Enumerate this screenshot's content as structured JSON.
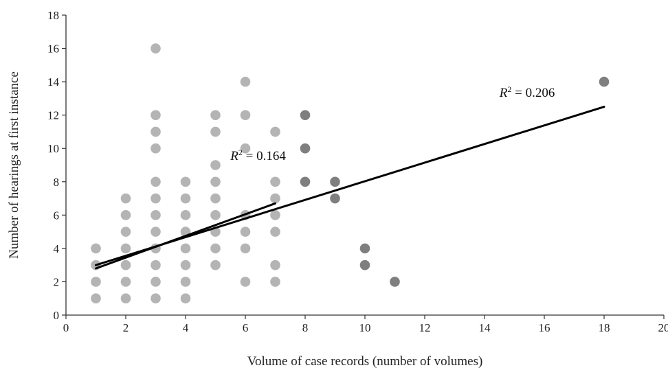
{
  "chart_data": {
    "type": "scatter",
    "title": "",
    "xlabel": "Volume of case records (number of volumes)",
    "ylabel": "Number of hearings at first instance",
    "xlim": [
      0,
      20
    ],
    "ylim": [
      0,
      18
    ],
    "xticks": [
      0,
      2,
      4,
      6,
      8,
      10,
      12,
      14,
      16,
      18,
      20
    ],
    "yticks": [
      0,
      2,
      4,
      6,
      8,
      10,
      12,
      14,
      16,
      18
    ],
    "grid": false,
    "legend": "none",
    "series": [
      {
        "color": "#b4b4b4",
        "points": [
          [
            1,
            1
          ],
          [
            1,
            2
          ],
          [
            1,
            3
          ],
          [
            1,
            4
          ],
          [
            2,
            1
          ],
          [
            2,
            2
          ],
          [
            2,
            3
          ],
          [
            2,
            4
          ],
          [
            2,
            5
          ],
          [
            2,
            6
          ],
          [
            2,
            7
          ],
          [
            3,
            1
          ],
          [
            3,
            2
          ],
          [
            3,
            3
          ],
          [
            3,
            4
          ],
          [
            3,
            5
          ],
          [
            3,
            6
          ],
          [
            3,
            7
          ],
          [
            3,
            8
          ],
          [
            3,
            10
          ],
          [
            3,
            11
          ],
          [
            3,
            12
          ],
          [
            3,
            16
          ],
          [
            4,
            1
          ],
          [
            4,
            2
          ],
          [
            4,
            3
          ],
          [
            4,
            4
          ],
          [
            4,
            5
          ],
          [
            4,
            6
          ],
          [
            4,
            7
          ],
          [
            4,
            8
          ],
          [
            5,
            3
          ],
          [
            5,
            4
          ],
          [
            5,
            5
          ],
          [
            5,
            6
          ],
          [
            5,
            7
          ],
          [
            5,
            8
          ],
          [
            5,
            9
          ],
          [
            5,
            11
          ],
          [
            5,
            12
          ],
          [
            6,
            2
          ],
          [
            6,
            4
          ],
          [
            6,
            5
          ],
          [
            6,
            6
          ],
          [
            6,
            10
          ],
          [
            6,
            12
          ],
          [
            6,
            14
          ],
          [
            7,
            2
          ],
          [
            7,
            3
          ],
          [
            7,
            5
          ],
          [
            7,
            6
          ],
          [
            7,
            7
          ],
          [
            7,
            8
          ],
          [
            7,
            11
          ]
        ]
      },
      {
        "color": "#7f7f7f",
        "points": [
          [
            8,
            8
          ],
          [
            8,
            10
          ],
          [
            8,
            12
          ],
          [
            9,
            7
          ],
          [
            9,
            8
          ],
          [
            10,
            3
          ],
          [
            10,
            4
          ],
          [
            11,
            2
          ],
          [
            18,
            14
          ]
        ]
      }
    ],
    "trendlines": [
      {
        "x": [
          1,
          7
        ],
        "y": [
          2.8,
          6.7
        ],
        "label_prefix": "R",
        "label_exp": "2",
        "label_value": " = 0.164",
        "label_at": [
          5.5,
          9.3
        ]
      },
      {
        "x": [
          1,
          18
        ],
        "y": [
          3.0,
          12.5
        ],
        "label_prefix": "R",
        "label_exp": "2",
        "label_value": " = 0.206",
        "label_at": [
          14.5,
          13.1
        ]
      }
    ]
  }
}
